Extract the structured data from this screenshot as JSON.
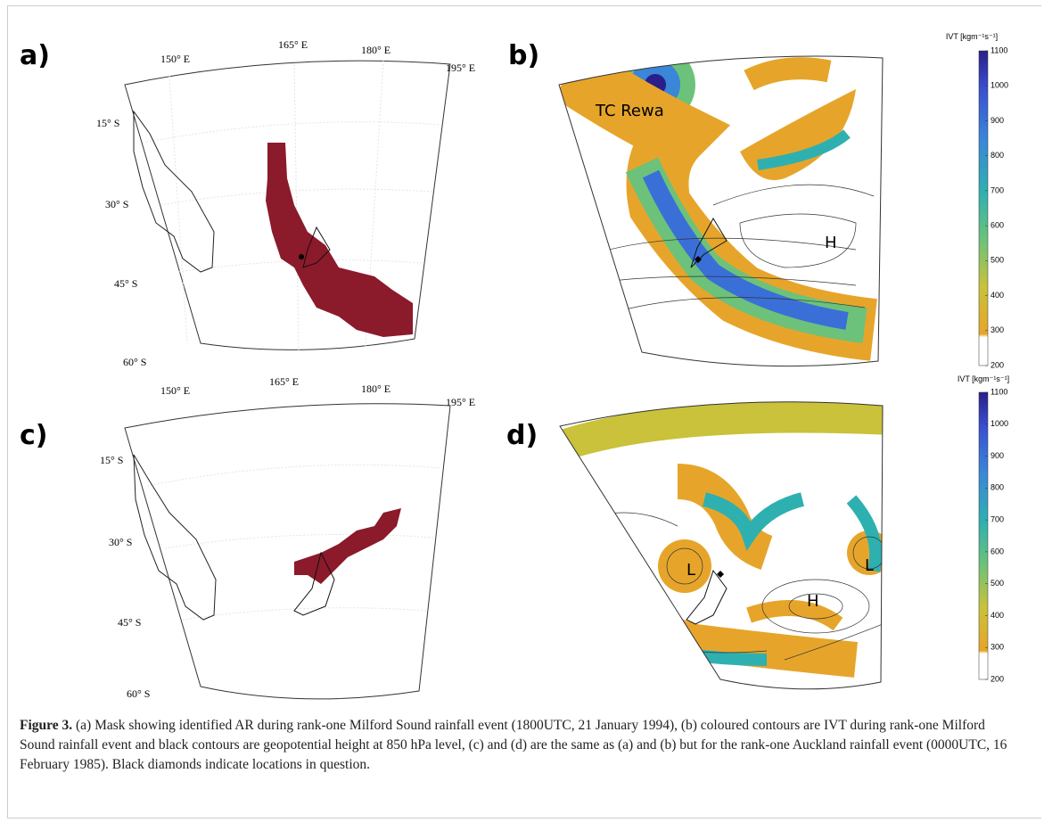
{
  "panels": [
    {
      "label": "a)",
      "lon_labels": [
        "150° E",
        "165° E",
        "180° E",
        "195° E"
      ],
      "lat_labels": [
        "15° S",
        "30° S",
        "45° S",
        "60° S"
      ]
    },
    {
      "label": "b)",
      "annotations": [
        "TC Rewa",
        "H"
      ]
    },
    {
      "label": "c)",
      "lon_labels": [
        "150° E",
        "165° E",
        "180° E",
        "195° E"
      ],
      "lat_labels": [
        "15° S",
        "30° S",
        "45° S",
        "60° S"
      ]
    },
    {
      "label": "d)",
      "annotations": [
        "L",
        "L",
        "H"
      ]
    }
  ],
  "colorbars": [
    {
      "title": "IVT [kgm⁻¹s⁻¹]",
      "ticks": [
        200,
        300,
        400,
        500,
        600,
        700,
        800,
        900,
        1000,
        1100
      ]
    },
    {
      "title": "IVT [kgm⁻¹s⁻¹]",
      "ticks": [
        200,
        300,
        400,
        500,
        600,
        700,
        800,
        900,
        1000,
        1100
      ]
    }
  ],
  "caption": {
    "label": "Figure 3.",
    "text": "(a) Mask showing identified AR during rank-one Milford Sound rainfall event (1800UTC, 21 January 1994), (b) coloured contours are IVT during rank-one Milford Sound rainfall event and black contours are geopotential height at 850 hPa level, (c) and (d) are the same as (a) and (b) but for the rank-one Auckland rainfall event (0000UTC, 16 February 1985). Black diamonds indicate locations in question."
  }
}
